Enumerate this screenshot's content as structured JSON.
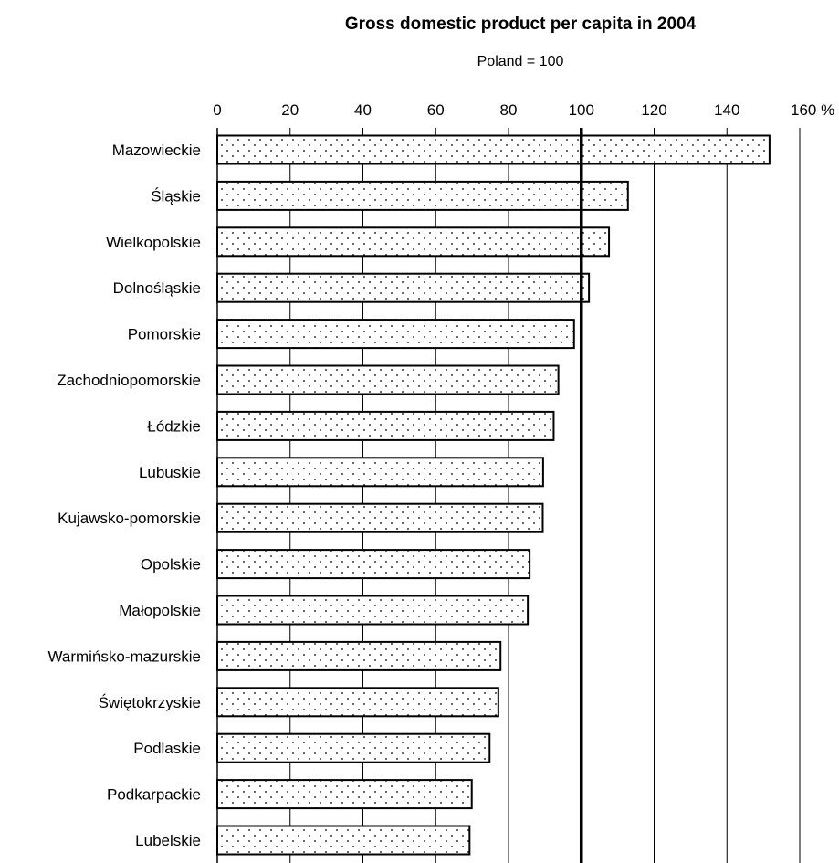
{
  "chart_data": {
    "type": "bar",
    "orientation": "horizontal",
    "title": "Gross domestic product per capita in 2004",
    "subtitle": "Poland = 100",
    "xlabel": "",
    "ylabel": "",
    "xlim": [
      0,
      160
    ],
    "x_ticks": [
      0,
      20,
      40,
      60,
      80,
      100,
      120,
      140,
      160
    ],
    "x_tick_labels": [
      "0",
      "20",
      "40",
      "60",
      "80",
      "100",
      "120",
      "140",
      "160 %"
    ],
    "x_axis_position": "top",
    "reference_line": 100,
    "grid": "vertical",
    "legend": "none",
    "bar_fill": "dotted",
    "colors": {
      "bar_fill": "#ffffff",
      "bar_border": "#000000",
      "grid": "#000000",
      "dots": "#000000"
    },
    "categories": [
      "Mazowieckie",
      "Śląskie",
      "Wielkopolskie",
      "Dolnośląskie",
      "Pomorskie",
      "Zachodniopomorskie",
      "Łódzkie",
      "Lubuskie",
      "Kujawsko-pomorskie",
      "Opolskie",
      "Małopolskie",
      "Warmińsko-mazurskie",
      "Świętokrzyskie",
      "Podlaskie",
      "Podkarpackie",
      "Lubelskie"
    ],
    "values": [
      151.7,
      112.8,
      107.6,
      102.1,
      98.0,
      93.7,
      92.4,
      89.5,
      89.4,
      85.8,
      85.3,
      77.8,
      77.2,
      74.8,
      69.9,
      69.3
    ]
  }
}
